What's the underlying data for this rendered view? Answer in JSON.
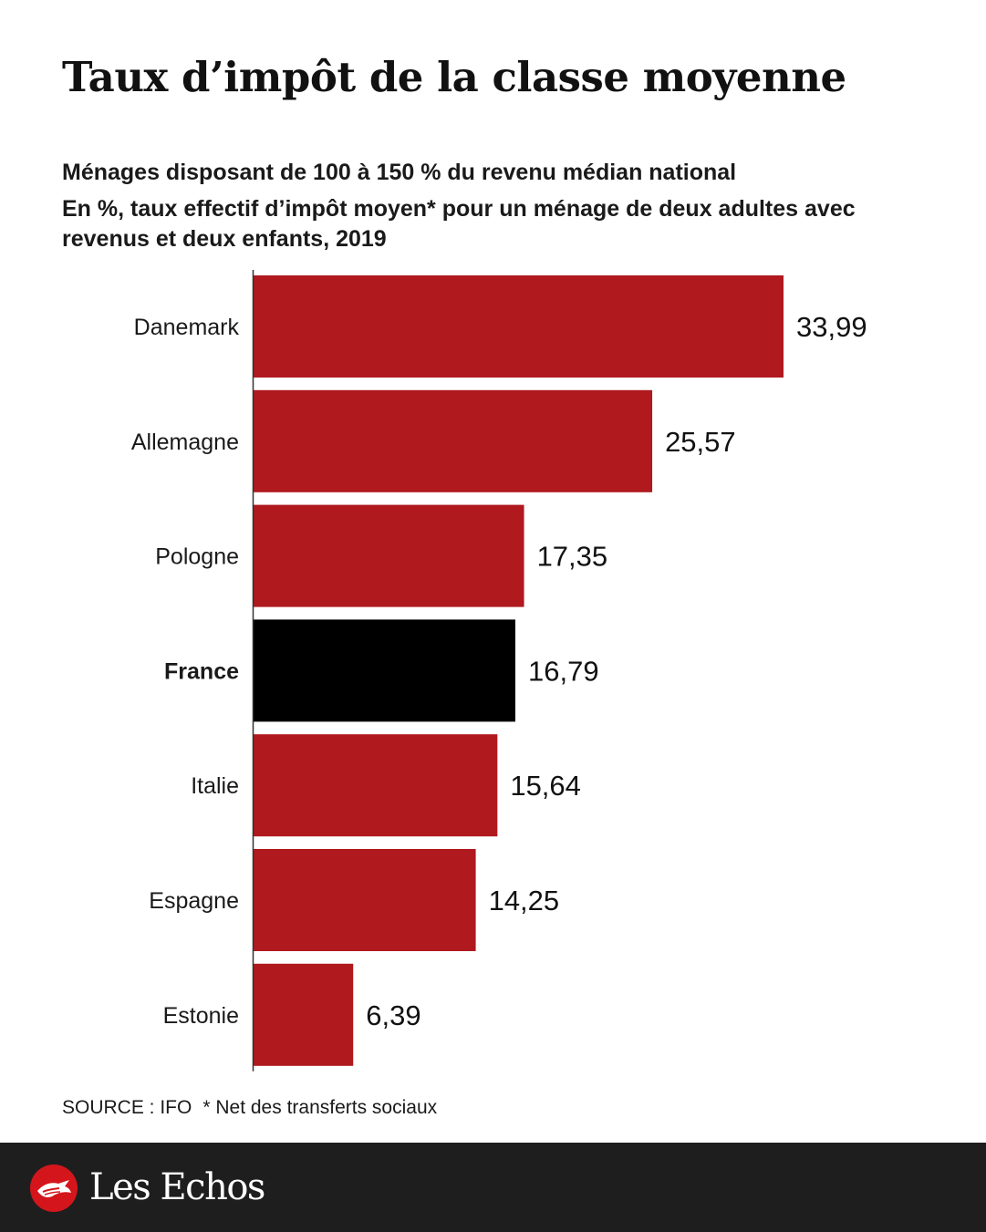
{
  "title": "Taux d’impôt de la classe moyenne",
  "subtitle": "Ménages disposant de 100 à 150 % du revenu médian national",
  "subtitle2": "En %, taux effectif d’impôt moyen* pour un ménage de deux adultes avec revenus et deux enfants, 2019",
  "source": "SOURCE : IFO",
  "footnote": "* Net des transferts sociaux",
  "brand": "Les Echos",
  "colors": {
    "bar": "#b0191e",
    "highlight": "#000000",
    "footer": "#1e1e1e",
    "logo": "#d4161c"
  },
  "chart_data": {
    "type": "bar",
    "orientation": "horizontal",
    "categories": [
      "Danemark",
      "Allemagne",
      "Pologne",
      "France",
      "Italie",
      "Espagne",
      "Estonie"
    ],
    "values": [
      33.99,
      25.57,
      17.35,
      16.79,
      15.64,
      14.25,
      6.39
    ],
    "value_labels": [
      "33,99",
      "25,57",
      "17,35",
      "16,79",
      "15,64",
      "14,25",
      "6,39"
    ],
    "highlight": "France",
    "xlim": [
      0,
      35
    ],
    "grid": false,
    "legend": "none"
  }
}
